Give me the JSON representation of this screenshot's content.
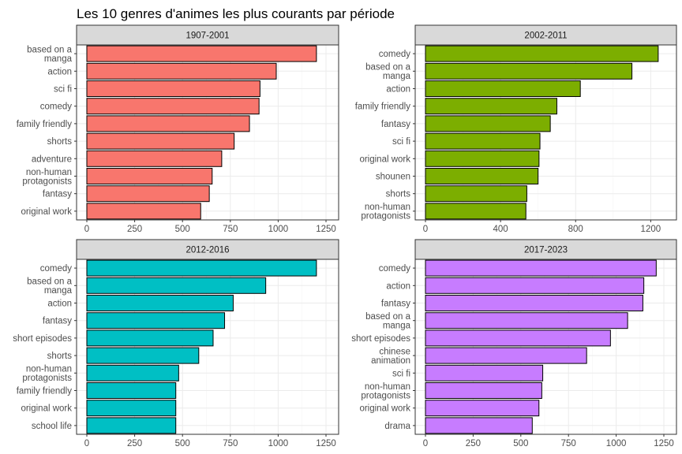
{
  "title": "Les 10 genres d'animes les plus courants par période",
  "colors": {
    "panel_1": "#f8766d",
    "panel_2": "#7cae00",
    "panel_3": "#00bfc4",
    "panel_4": "#c77cff",
    "strip_bg": "#d9d9d9",
    "grid": "#ebebeb"
  },
  "chart_data": [
    {
      "type": "bar",
      "orientation": "horizontal",
      "facet": "1907-2001",
      "color": "#f8766d",
      "xlim": [
        0,
        1250
      ],
      "xticks": [
        0,
        250,
        500,
        750,
        1000,
        1250
      ],
      "grid": true,
      "categories": [
        "based on a manga",
        "action",
        "sci fi",
        "comedy",
        "family friendly",
        "shorts",
        "adventure",
        "non-human protagonists",
        "fantasy",
        "original work"
      ],
      "category_lines": [
        [
          "based on a",
          "manga"
        ],
        [
          "action"
        ],
        [
          "sci fi"
        ],
        [
          "comedy"
        ],
        [
          "family friendly"
        ],
        [
          "shorts"
        ],
        [
          "adventure"
        ],
        [
          "non-human",
          "protagonists"
        ],
        [
          "fantasy"
        ],
        [
          "original work"
        ]
      ],
      "values": [
        1200,
        990,
        905,
        900,
        850,
        770,
        705,
        655,
        640,
        595
      ]
    },
    {
      "type": "bar",
      "orientation": "horizontal",
      "facet": "2002-2011",
      "color": "#7cae00",
      "xlim": [
        0,
        1270
      ],
      "xticks": [
        0,
        400,
        800,
        1200
      ],
      "grid": true,
      "categories": [
        "comedy",
        "based on a manga",
        "action",
        "family friendly",
        "fantasy",
        "sci fi",
        "original work",
        "shounen",
        "shorts",
        "non-human protagonists"
      ],
      "category_lines": [
        [
          "comedy"
        ],
        [
          "based on a",
          "manga"
        ],
        [
          "action"
        ],
        [
          "family friendly"
        ],
        [
          "fantasy"
        ],
        [
          "sci fi"
        ],
        [
          "original work"
        ],
        [
          "shounen"
        ],
        [
          "shorts"
        ],
        [
          "non-human",
          "protagonists"
        ]
      ],
      "values": [
        1240,
        1100,
        825,
        700,
        665,
        610,
        605,
        600,
        540,
        535
      ]
    },
    {
      "type": "bar",
      "orientation": "horizontal",
      "facet": "2012-2016",
      "color": "#00bfc4",
      "xlim": [
        0,
        1250
      ],
      "xticks": [
        0,
        250,
        500,
        750,
        1000,
        1250
      ],
      "grid": true,
      "categories": [
        "comedy",
        "based on a manga",
        "action",
        "fantasy",
        "short episodes",
        "shorts",
        "non-human protagonists",
        "family friendly",
        "original work",
        "school life"
      ],
      "category_lines": [
        [
          "comedy"
        ],
        [
          "based on a",
          "manga"
        ],
        [
          "action"
        ],
        [
          "fantasy"
        ],
        [
          "short episodes"
        ],
        [
          "shorts"
        ],
        [
          "non-human",
          "protagonists"
        ],
        [
          "family friendly"
        ],
        [
          "original work"
        ],
        [
          "school life"
        ]
      ],
      "values": [
        1200,
        935,
        765,
        720,
        660,
        585,
        480,
        465,
        465,
        465
      ]
    },
    {
      "type": "bar",
      "orientation": "horizontal",
      "facet": "2017-2023",
      "color": "#c77cff",
      "xlim": [
        0,
        1250
      ],
      "xticks": [
        0,
        250,
        500,
        750,
        1000,
        1250
      ],
      "grid": true,
      "categories": [
        "comedy",
        "action",
        "fantasy",
        "based on a manga",
        "short episodes",
        "chinese animation",
        "sci fi",
        "non-human protagonists",
        "original work",
        "drama"
      ],
      "category_lines": [
        [
          "comedy"
        ],
        [
          "action"
        ],
        [
          "fantasy"
        ],
        [
          "based on a",
          "manga"
        ],
        [
          "short episodes"
        ],
        [
          "chinese",
          "animation"
        ],
        [
          "sci fi"
        ],
        [
          "non-human",
          "protagonists"
        ],
        [
          "original work"
        ],
        [
          "drama"
        ]
      ],
      "values": [
        1210,
        1145,
        1140,
        1060,
        970,
        845,
        615,
        610,
        595,
        560
      ]
    }
  ]
}
